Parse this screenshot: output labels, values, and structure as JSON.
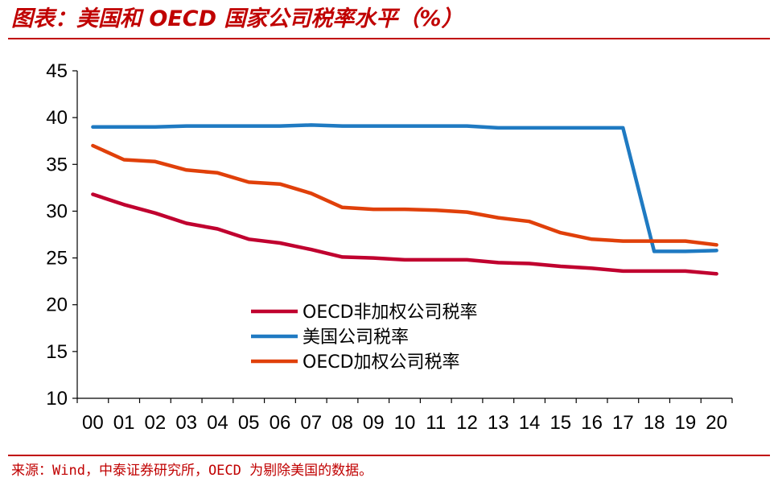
{
  "header": {
    "title": "图表：美国和 OECD 国家公司税率水平（%）"
  },
  "footer": {
    "source": "来源：Wind，中泰证券研究所，OECD 为剔除美国的数据。"
  },
  "colors": {
    "accent": "#c00000",
    "oecd_unweighted": "#c0002f",
    "us": "#1f7ac2",
    "oecd_weighted": "#e0400a"
  },
  "chart_data": {
    "type": "line",
    "title": "",
    "xlabel": "",
    "ylabel": "",
    "ylim": [
      10,
      45
    ],
    "yticks": [
      "10",
      "15",
      "20",
      "25",
      "30",
      "35",
      "40",
      "45"
    ],
    "categories": [
      "00",
      "01",
      "02",
      "03",
      "04",
      "05",
      "06",
      "07",
      "08",
      "09",
      "10",
      "11",
      "12",
      "13",
      "14",
      "15",
      "16",
      "17",
      "18",
      "19",
      "20"
    ],
    "grid": false,
    "legend_position": "inside-lower-center",
    "series": [
      {
        "name": "OECD非加权公司税率",
        "color": "#c0002f",
        "values": [
          31.8,
          30.7,
          29.8,
          28.7,
          28.1,
          27.0,
          26.6,
          25.9,
          25.1,
          25.0,
          24.8,
          24.8,
          24.8,
          24.5,
          24.4,
          24.1,
          23.9,
          23.6,
          23.6,
          23.6,
          23.3
        ]
      },
      {
        "name": "美国公司税率",
        "color": "#1f7ac2",
        "values": [
          39.0,
          39.0,
          39.0,
          39.1,
          39.1,
          39.1,
          39.1,
          39.2,
          39.1,
          39.1,
          39.1,
          39.1,
          39.1,
          38.9,
          38.9,
          38.9,
          38.9,
          38.9,
          25.7,
          25.7,
          25.8
        ]
      },
      {
        "name": "OECD加权公司税率",
        "color": "#e0400a",
        "values": [
          37.0,
          35.5,
          35.3,
          34.4,
          34.1,
          33.1,
          32.9,
          31.9,
          30.4,
          30.2,
          30.2,
          30.1,
          29.9,
          29.3,
          28.9,
          27.7,
          27.0,
          26.8,
          26.8,
          26.8,
          26.4
        ]
      }
    ]
  }
}
